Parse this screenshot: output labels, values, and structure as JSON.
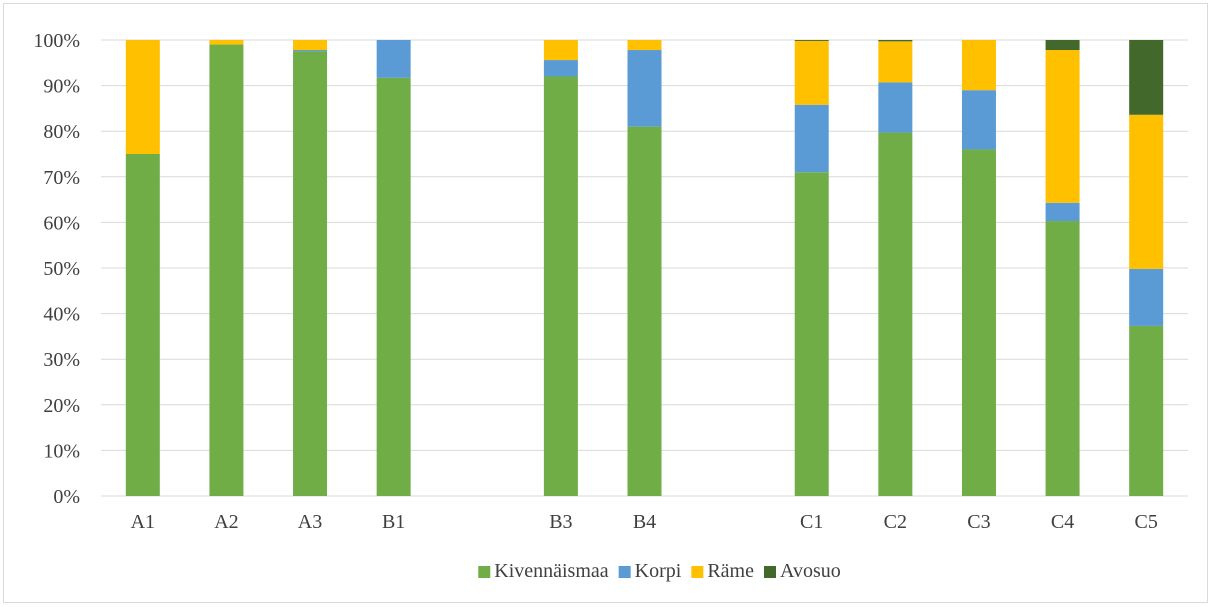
{
  "chart_data": {
    "type": "bar",
    "stacked": true,
    "categories": [
      "A1",
      "A2",
      "A3",
      "B1",
      "",
      "B3",
      "B4",
      "",
      "C1",
      "C2",
      "C3",
      "C4",
      "C5"
    ],
    "series": [
      {
        "name": "Kivennäismaa",
        "color": "#70ad47",
        "values": [
          75,
          99,
          97.5,
          91.7,
          null,
          92,
          81,
          null,
          71,
          79.7,
          76,
          60.3,
          37.3
        ]
      },
      {
        "name": "Korpi",
        "color": "#5b9bd5",
        "values": [
          0,
          0,
          0.3,
          8.3,
          null,
          3.6,
          16.8,
          null,
          14.8,
          11,
          13,
          4,
          12.5
        ]
      },
      {
        "name": "Räme",
        "color": "#ffc000",
        "values": [
          25,
          1,
          2.2,
          0,
          null,
          4.4,
          2.2,
          null,
          14,
          9,
          11,
          33.5,
          33.8
        ]
      },
      {
        "name": "Avosuo",
        "color": "#43682b",
        "values": [
          0,
          0,
          0,
          0,
          null,
          0,
          0,
          null,
          0.2,
          0.3,
          0,
          2.2,
          16.4
        ]
      }
    ],
    "yticks": [
      "0%",
      "10%",
      "20%",
      "30%",
      "40%",
      "50%",
      "60%",
      "70%",
      "80%",
      "90%",
      "100%"
    ],
    "ylim": [
      0,
      100
    ],
    "grid": true,
    "legend": "bottom"
  }
}
